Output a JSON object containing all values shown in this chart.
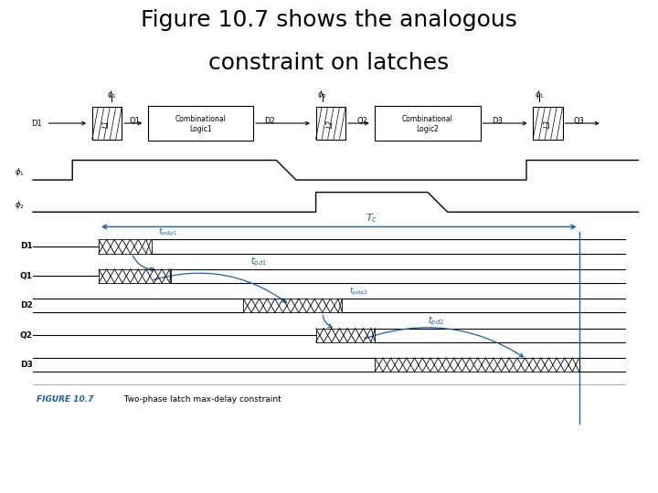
{
  "title_line1": "Figure 10.7 shows the analogous",
  "title_line2": "constraint on latches",
  "title_fontsize": 18,
  "bg_color": "#bebebe",
  "white": "#ffffff",
  "blue": "#1a5fa8",
  "black": "#000000",
  "figure_caption": "FIGURE 10.7",
  "figure_caption2": "  Two-phase latch max-delay constraint"
}
